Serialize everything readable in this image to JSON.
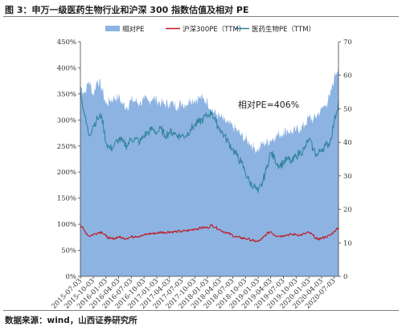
{
  "figure": {
    "title": "图 3：申万一级医药生物行业和沪深 300 指数估值及相对 PE",
    "source": "数据来源：wind，山西证券研究所"
  },
  "chart_data": {
    "type": "area",
    "legend": [
      "相对PE",
      "沪深300PE（TTM）",
      "医药生物PE（TTM）"
    ],
    "legend_position": "top",
    "annotation": "相对PE=406%",
    "colors": {
      "relative_pe": "#8DB3E2",
      "hs300": "#C0161C",
      "pharma": "#31849B"
    },
    "y_left": {
      "min": 0,
      "max": 450,
      "step": 50,
      "ticks": [
        "0%",
        "50%",
        "100%",
        "150%",
        "200%",
        "250%",
        "300%",
        "350%",
        "400%",
        "450%"
      ]
    },
    "y_right": {
      "min": 0,
      "max": 70,
      "step": 10,
      "ticks": [
        "0",
        "10",
        "20",
        "30",
        "40",
        "50",
        "60",
        "70"
      ]
    },
    "x_ticks": [
      "2015-07-03",
      "2015-10-03",
      "2016-01-03",
      "2016-04-03",
      "2016-07-03",
      "2016-10-03",
      "2017-01-03",
      "2017-04-03",
      "2017-07-03",
      "2017-10-03",
      "2018-01-03",
      "2018-04-03",
      "2018-07-03",
      "2018-10-03",
      "2019-01-03",
      "2019-04-03",
      "2019-07-03",
      "2019-10-03",
      "2020-01-03",
      "2020-04-03",
      "2020-07-03"
    ],
    "grid": false,
    "series": [
      {
        "name": "相对PE",
        "axis": "left",
        "kind": "area",
        "x": [
          "2015-07-03",
          "2015-08-03",
          "2015-09-03",
          "2015-10-03",
          "2015-11-03",
          "2015-12-03",
          "2016-01-03",
          "2016-02-03",
          "2016-03-03",
          "2016-04-03",
          "2016-05-03",
          "2016-06-03",
          "2016-07-03",
          "2016-08-03",
          "2016-09-03",
          "2016-10-03",
          "2016-11-03",
          "2016-12-03",
          "2017-01-03",
          "2017-02-03",
          "2017-03-03",
          "2017-04-03",
          "2017-05-03",
          "2017-06-03",
          "2017-07-03",
          "2017-08-03",
          "2017-09-03",
          "2017-10-03",
          "2017-11-03",
          "2017-12-03",
          "2018-01-03",
          "2018-02-03",
          "2018-03-03",
          "2018-04-03",
          "2018-05-03",
          "2018-06-03",
          "2018-07-03",
          "2018-08-03",
          "2018-09-03",
          "2018-10-03",
          "2018-11-03",
          "2018-12-03",
          "2019-01-03",
          "2019-02-03",
          "2019-03-03",
          "2019-04-03",
          "2019-05-03",
          "2019-06-03",
          "2019-07-03",
          "2019-08-03",
          "2019-09-03",
          "2019-10-03",
          "2019-11-03",
          "2019-12-03",
          "2020-01-03",
          "2020-02-03",
          "2020-03-03",
          "2020-04-03",
          "2020-05-03",
          "2020-06-03",
          "2020-07-03",
          "2020-08-03"
        ],
        "values": [
          365,
          352,
          375,
          348,
          378,
          362,
          330,
          338,
          342,
          344,
          330,
          325,
          338,
          336,
          332,
          338,
          336,
          342,
          338,
          333,
          330,
          332,
          330,
          327,
          332,
          330,
          340,
          338,
          343,
          340,
          335,
          320,
          312,
          306,
          298,
          292,
          287,
          280,
          270,
          262,
          257,
          247,
          242,
          255,
          256,
          262,
          268,
          272,
          276,
          280,
          276,
          280,
          284,
          290,
          305,
          300,
          310,
          320,
          330,
          345,
          380,
          406
        ]
      },
      {
        "name": "沪深300PE（TTM）",
        "axis": "right",
        "kind": "line",
        "x": [
          "2015-07-03",
          "2015-08-03",
          "2015-09-03",
          "2015-10-03",
          "2015-11-03",
          "2015-12-03",
          "2016-01-03",
          "2016-02-03",
          "2016-03-03",
          "2016-04-03",
          "2016-05-03",
          "2016-06-03",
          "2016-07-03",
          "2016-08-03",
          "2016-09-03",
          "2016-10-03",
          "2016-11-03",
          "2016-12-03",
          "2017-01-03",
          "2017-02-03",
          "2017-03-03",
          "2017-04-03",
          "2017-05-03",
          "2017-06-03",
          "2017-07-03",
          "2017-08-03",
          "2017-09-03",
          "2017-10-03",
          "2017-11-03",
          "2017-12-03",
          "2018-01-03",
          "2018-02-03",
          "2018-03-03",
          "2018-04-03",
          "2018-05-03",
          "2018-06-03",
          "2018-07-03",
          "2018-08-03",
          "2018-09-03",
          "2018-10-03",
          "2018-11-03",
          "2018-12-03",
          "2019-01-03",
          "2019-02-03",
          "2019-03-03",
          "2019-04-03",
          "2019-05-03",
          "2019-06-03",
          "2019-07-03",
          "2019-08-03",
          "2019-09-03",
          "2019-10-03",
          "2019-11-03",
          "2019-12-03",
          "2020-01-03",
          "2020-02-03",
          "2020-03-03",
          "2020-04-03",
          "2020-05-03",
          "2020-06-03",
          "2020-07-03",
          "2020-08-03"
        ],
        "values": [
          15.3,
          13.5,
          12.0,
          12.5,
          13.0,
          13.3,
          12.0,
          11.2,
          11.3,
          11.8,
          11.4,
          11.4,
          11.8,
          12.0,
          12.0,
          12.3,
          12.7,
          12.8,
          12.9,
          13.2,
          13.1,
          13.3,
          13.3,
          13.4,
          13.4,
          13.6,
          13.8,
          14.2,
          14.3,
          14.6,
          14.5,
          15.3,
          14.6,
          13.9,
          13.3,
          12.8,
          12.2,
          11.7,
          11.5,
          11.3,
          11.0,
          10.6,
          10.4,
          11.3,
          12.6,
          13.4,
          12.3,
          12.0,
          12.2,
          12.4,
          12.5,
          12.5,
          12.3,
          12.7,
          13.1,
          12.2,
          11.0,
          11.4,
          11.8,
          12.2,
          13.4,
          14.6
        ]
      },
      {
        "name": "医药生物PE（TTM）",
        "axis": "right",
        "kind": "line",
        "x": [
          "2015-07-03",
          "2015-08-03",
          "2015-09-03",
          "2015-10-03",
          "2015-11-03",
          "2015-12-03",
          "2016-01-03",
          "2016-02-03",
          "2016-03-03",
          "2016-04-03",
          "2016-05-03",
          "2016-06-03",
          "2016-07-03",
          "2016-08-03",
          "2016-09-03",
          "2016-10-03",
          "2016-11-03",
          "2016-12-03",
          "2017-01-03",
          "2017-02-03",
          "2017-03-03",
          "2017-04-03",
          "2017-05-03",
          "2017-06-03",
          "2017-07-03",
          "2017-08-03",
          "2017-09-03",
          "2017-10-03",
          "2017-11-03",
          "2017-12-03",
          "2018-01-03",
          "2018-02-03",
          "2018-03-03",
          "2018-04-03",
          "2018-05-03",
          "2018-06-03",
          "2018-07-03",
          "2018-08-03",
          "2018-09-03",
          "2018-10-03",
          "2018-11-03",
          "2018-12-03",
          "2019-01-03",
          "2019-02-03",
          "2019-03-03",
          "2019-04-03",
          "2019-05-03",
          "2019-06-03",
          "2019-07-03",
          "2019-08-03",
          "2019-09-03",
          "2019-10-03",
          "2019-11-03",
          "2019-12-03",
          "2020-01-03",
          "2020-02-03",
          "2020-03-03",
          "2020-04-03",
          "2020-05-03",
          "2020-06-03",
          "2020-07-03",
          "2020-08-03"
        ],
        "values": [
          55,
          48,
          42,
          45,
          47,
          48,
          40,
          38,
          39,
          41,
          40,
          39,
          41,
          41,
          40,
          42,
          43,
          44,
          43,
          44,
          42,
          43,
          43,
          42,
          42,
          42,
          44,
          45,
          46,
          47,
          48,
          49,
          46,
          44,
          42,
          40,
          38,
          36,
          34,
          31,
          28,
          27,
          25,
          28,
          32,
          37,
          35,
          33,
          34,
          35,
          34,
          36,
          37,
          38,
          41,
          38,
          36,
          38,
          39,
          40,
          46,
          52
        ]
      }
    ]
  }
}
